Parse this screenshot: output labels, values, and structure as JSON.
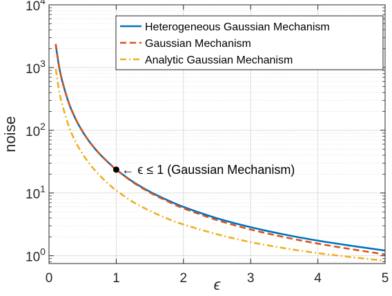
{
  "chart_data": {
    "type": "line",
    "xlabel": "ϵ",
    "ylabel": "noise",
    "xlim": [
      0,
      5
    ],
    "ylim": [
      0.75,
      10000
    ],
    "y_scale": "log",
    "grid": true,
    "legend_position": "top-right",
    "x_ticks": [
      {
        "value": 0,
        "label": "0"
      },
      {
        "value": 1,
        "label": "1"
      },
      {
        "value": 2,
        "label": "2"
      },
      {
        "value": 3,
        "label": "3"
      },
      {
        "value": 4,
        "label": "4"
      },
      {
        "value": 5,
        "label": "5"
      }
    ],
    "y_ticks": [
      {
        "value": 1,
        "base": "10",
        "exp": "0"
      },
      {
        "value": 10,
        "base": "10",
        "exp": "1"
      },
      {
        "value": 100,
        "base": "10",
        "exp": "2"
      },
      {
        "value": 1000,
        "base": "10",
        "exp": "3"
      },
      {
        "value": 10000,
        "base": "10",
        "exp": "4"
      }
    ],
    "series": [
      {
        "name": "Heterogeneous Gaussian Mechanism",
        "color": "#0072BD",
        "style": "solid",
        "points": [
          [
            0.1,
            2300
          ],
          [
            0.15,
            1030
          ],
          [
            0.2,
            590
          ],
          [
            0.3,
            262
          ],
          [
            0.4,
            148
          ],
          [
            0.5,
            95
          ],
          [
            0.6,
            66
          ],
          [
            0.7,
            48.5
          ],
          [
            0.8,
            37.2
          ],
          [
            0.9,
            29.4
          ],
          [
            1.0,
            23.6
          ],
          [
            1.25,
            15.1
          ],
          [
            1.5,
            10.5
          ],
          [
            1.75,
            7.8
          ],
          [
            2.0,
            6.0
          ],
          [
            2.5,
            3.95
          ],
          [
            3.0,
            2.85
          ],
          [
            3.5,
            2.18
          ],
          [
            4.0,
            1.74
          ],
          [
            4.5,
            1.44
          ],
          [
            5.0,
            1.21
          ]
        ]
      },
      {
        "name": "Gaussian Mechanism",
        "color": "#D95319",
        "style": "dashed",
        "points": [
          [
            0.1,
            2380
          ],
          [
            0.15,
            1060
          ],
          [
            0.2,
            600
          ],
          [
            0.3,
            266
          ],
          [
            0.4,
            150
          ],
          [
            0.5,
            96
          ],
          [
            0.6,
            66.5
          ],
          [
            0.7,
            48.8
          ],
          [
            0.8,
            37.4
          ],
          [
            0.9,
            29.5
          ],
          [
            1.0,
            23.6
          ],
          [
            1.25,
            14.8
          ],
          [
            1.5,
            10.2
          ],
          [
            1.75,
            7.5
          ],
          [
            2.0,
            5.7
          ],
          [
            2.5,
            3.7
          ],
          [
            3.0,
            2.62
          ],
          [
            3.5,
            1.98
          ],
          [
            4.0,
            1.56
          ],
          [
            4.5,
            1.27
          ],
          [
            5.0,
            1.05
          ]
        ]
      },
      {
        "name": "Analytic Gaussian Mechanism",
        "color": "#EDB120",
        "style": "dashdot",
        "points": [
          [
            0.1,
            950
          ],
          [
            0.15,
            430
          ],
          [
            0.2,
            250
          ],
          [
            0.3,
            112
          ],
          [
            0.4,
            64
          ],
          [
            0.5,
            42
          ],
          [
            0.6,
            29.5
          ],
          [
            0.7,
            22
          ],
          [
            0.8,
            17
          ],
          [
            0.9,
            13.5
          ],
          [
            1.0,
            11
          ],
          [
            1.25,
            7.2
          ],
          [
            1.5,
            5.2
          ],
          [
            1.75,
            3.95
          ],
          [
            2.0,
            3.15
          ],
          [
            2.5,
            2.2
          ],
          [
            3.0,
            1.65
          ],
          [
            3.5,
            1.32
          ],
          [
            4.0,
            1.1
          ],
          [
            4.5,
            0.95
          ],
          [
            5.0,
            0.83
          ]
        ]
      }
    ],
    "annotation": {
      "text": "← ϵ ≤ 1 (Gaussian Mechanism)",
      "x": 1.0,
      "y": 23.6
    }
  }
}
